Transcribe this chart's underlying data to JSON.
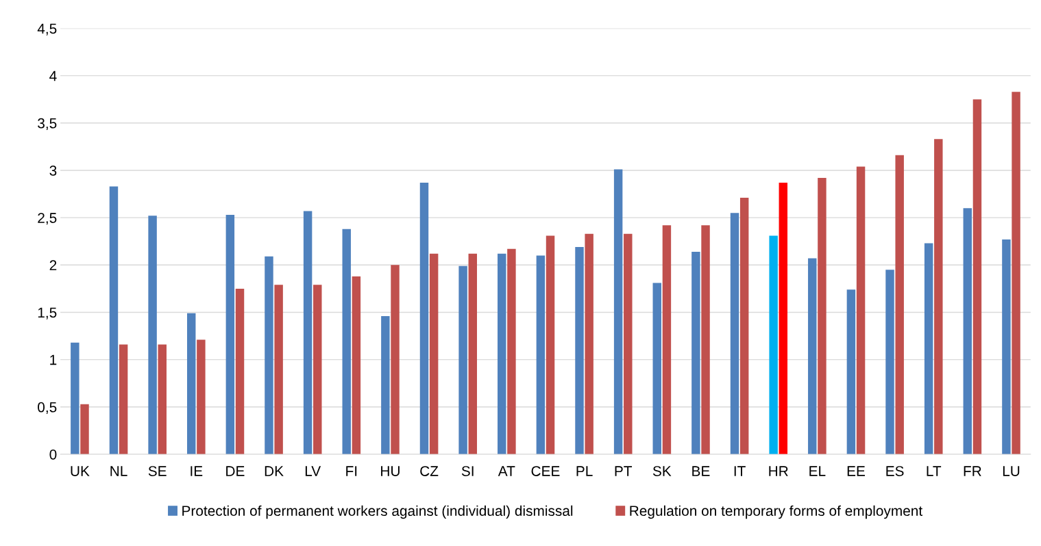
{
  "chart_data": {
    "type": "bar",
    "categories": [
      "UK",
      "NL",
      "SE",
      "IE",
      "DE",
      "DK",
      "LV",
      "FI",
      "HU",
      "CZ",
      "SI",
      "AT",
      "CEE",
      "PL",
      "PT",
      "SK",
      "BE",
      "IT",
      "HR",
      "EL",
      "EE",
      "ES",
      "LT",
      "FR",
      "LU"
    ],
    "series": [
      {
        "name": "Protection of permanent workers against (individual) dismissal",
        "color": "#4f81bd",
        "colors": [
          "#4f81bd",
          "#4f81bd",
          "#4f81bd",
          "#4f81bd",
          "#4f81bd",
          "#4f81bd",
          "#4f81bd",
          "#4f81bd",
          "#4f81bd",
          "#4f81bd",
          "#4f81bd",
          "#4f81bd",
          "#4f81bd",
          "#4f81bd",
          "#4f81bd",
          "#4f81bd",
          "#4f81bd",
          "#4f81bd",
          "#00b0f0",
          "#4f81bd",
          "#4f81bd",
          "#4f81bd",
          "#4f81bd",
          "#4f81bd",
          "#4f81bd"
        ],
        "values": [
          1.18,
          2.83,
          2.52,
          1.49,
          2.53,
          2.09,
          2.57,
          2.38,
          1.46,
          2.87,
          1.99,
          2.12,
          2.1,
          2.19,
          3.01,
          1.81,
          2.14,
          2.55,
          2.31,
          2.07,
          1.74,
          1.95,
          2.23,
          2.6,
          2.27
        ]
      },
      {
        "name": "Regulation on temporary forms of employment",
        "color": "#c0504d",
        "colors": [
          "#c0504d",
          "#c0504d",
          "#c0504d",
          "#c0504d",
          "#c0504d",
          "#c0504d",
          "#c0504d",
          "#c0504d",
          "#c0504d",
          "#c0504d",
          "#c0504d",
          "#c0504d",
          "#c0504d",
          "#c0504d",
          "#c0504d",
          "#c0504d",
          "#c0504d",
          "#c0504d",
          "#ff0000",
          "#c0504d",
          "#c0504d",
          "#c0504d",
          "#c0504d",
          "#c0504d",
          "#c0504d"
        ],
        "values": [
          0.53,
          1.16,
          1.16,
          1.21,
          1.75,
          1.79,
          1.79,
          1.88,
          2.0,
          2.12,
          2.12,
          2.17,
          2.31,
          2.33,
          2.33,
          2.42,
          2.42,
          2.71,
          2.87,
          2.92,
          3.04,
          3.16,
          3.33,
          3.75,
          3.83
        ]
      }
    ],
    "ylim": [
      0,
      4.5
    ],
    "yticks": [
      0,
      {
        "value": 0.5,
        "label": "0,5"
      },
      1,
      {
        "value": 1.5,
        "label": "1,5"
      },
      2,
      {
        "value": 2.5,
        "label": "2,5"
      },
      3,
      {
        "value": 3.5,
        "label": "3,5"
      },
      4,
      {
        "value": 4.5,
        "label": "4,5"
      }
    ],
    "grid": "y",
    "legend": "bottom"
  }
}
